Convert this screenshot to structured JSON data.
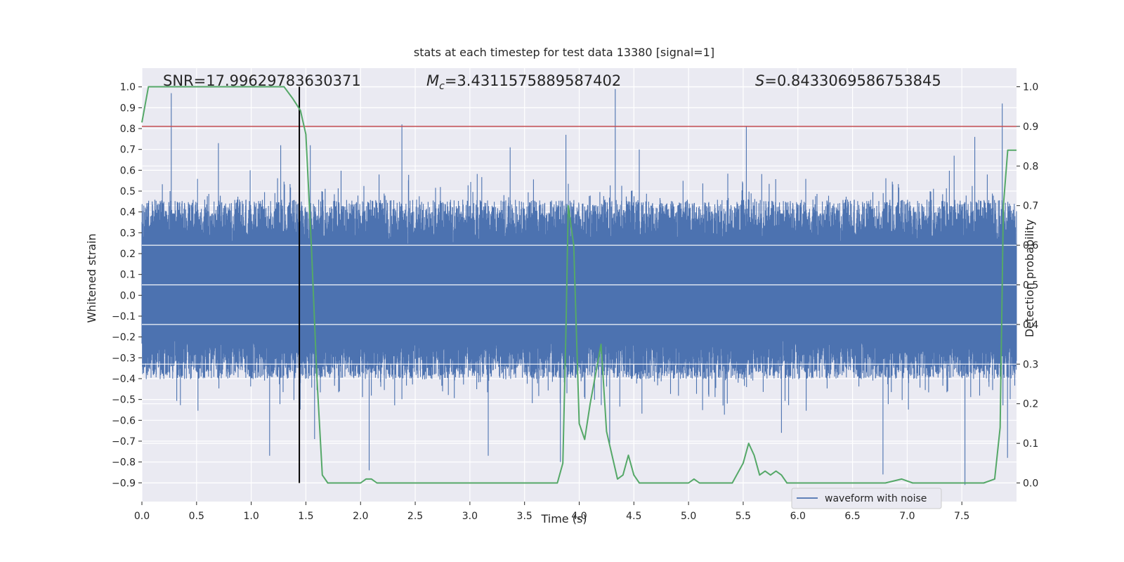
{
  "chart_data": {
    "type": "line",
    "title": "stats at each timestep for test data 13380 [signal=1]",
    "xlabel": "Time (s)",
    "ylabel_left": "Whitened strain",
    "ylabel_right": "Detection probability",
    "xlim": [
      0.0,
      8.0
    ],
    "ylim_left": [
      -0.99,
      1.09
    ],
    "ylim_right": [
      -0.047,
      1.047
    ],
    "x_ticks": [
      "0.0",
      "0.5",
      "1.0",
      "1.5",
      "2.0",
      "2.5",
      "3.0",
      "3.5",
      "4.0",
      "4.5",
      "5.0",
      "5.5",
      "6.0",
      "6.5",
      "7.0",
      "7.5"
    ],
    "y_ticks_left": [
      "1.0",
      "0.9",
      "0.8",
      "0.7",
      "0.6",
      "0.5",
      "0.4",
      "0.3",
      "0.2",
      "0.1",
      "0.0",
      "−0.1",
      "−0.2",
      "−0.3",
      "−0.4",
      "−0.5",
      "−0.6",
      "−0.7",
      "−0.8",
      "−0.9"
    ],
    "y_ticks_right": [
      "1.0",
      "0.9",
      "0.8",
      "0.7",
      "0.6",
      "0.5",
      "0.4",
      "0.3",
      "0.2",
      "0.1",
      "0.0"
    ],
    "grid": true,
    "legend": {
      "position": "bottom-right",
      "entries": [
        "waveform with noise"
      ]
    },
    "annotations": {
      "snr": "SNR=17.99629783630371",
      "mc_symbol": "M",
      "mc_sub": "c",
      "mc_value": "=3.4311575889587402",
      "s_symbol": "S",
      "s_value": "=0.8433069586753845"
    },
    "threshold_line": {
      "axis": "right",
      "value": 0.9,
      "color": "#c44e52"
    },
    "vertical_marker": {
      "x": 1.44,
      "y_range_right": [
        0.0,
        1.0
      ],
      "color": "#000000"
    },
    "series": [
      {
        "name": "waveform with noise",
        "axis": "left",
        "color": "#4c72b0",
        "description_values": {
          "dense_envelope_upper_typical": 0.4,
          "dense_envelope_lower_typical": -0.35,
          "spikes": [
            [
              0.27,
              0.97
            ],
            [
              0.7,
              0.73
            ],
            [
              0.99,
              0.6
            ],
            [
              1.27,
              0.72
            ],
            [
              1.54,
              0.72
            ],
            [
              2.38,
              0.82
            ],
            [
              3.37,
              0.71
            ],
            [
              3.88,
              0.77
            ],
            [
              4.33,
              0.99
            ],
            [
              4.55,
              0.7
            ],
            [
              5.53,
              0.81
            ],
            [
              7.43,
              0.67
            ],
            [
              7.62,
              0.76
            ],
            [
              7.87,
              0.92
            ],
            [
              1.17,
              -0.77
            ],
            [
              1.58,
              -0.69
            ],
            [
              2.08,
              -0.84
            ],
            [
              3.17,
              -0.77
            ],
            [
              3.83,
              -0.8
            ],
            [
              4.28,
              -0.71
            ],
            [
              5.85,
              -0.66
            ],
            [
              6.78,
              -0.86
            ],
            [
              7.53,
              -0.91
            ],
            [
              7.92,
              -0.78
            ]
          ]
        }
      },
      {
        "name": "",
        "axis": "right",
        "color": "#55a868",
        "x": [
          0.0,
          0.06,
          0.15,
          0.3,
          0.5,
          0.8,
          1.1,
          1.3,
          1.38,
          1.45,
          1.5,
          1.55,
          1.6,
          1.65,
          1.7,
          1.8,
          2.0,
          2.05,
          2.1,
          2.15,
          2.2,
          2.5,
          3.0,
          3.3,
          3.5,
          3.6,
          3.7,
          3.8,
          3.85,
          3.88,
          3.9,
          3.95,
          4.0,
          4.05,
          4.1,
          4.2,
          4.25,
          4.3,
          4.35,
          4.4,
          4.45,
          4.5,
          4.55,
          4.6,
          4.7,
          4.9,
          5.0,
          5.05,
          5.1,
          5.2,
          5.3,
          5.4,
          5.5,
          5.55,
          5.6,
          5.65,
          5.7,
          5.75,
          5.8,
          5.85,
          5.9,
          5.95,
          6.0,
          6.2,
          6.5,
          6.8,
          6.95,
          7.05,
          7.15,
          7.3,
          7.5,
          7.7,
          7.8,
          7.85,
          7.88,
          7.92,
          8.0
        ],
        "y": [
          0.91,
          1.0,
          1.0,
          1.0,
          1.0,
          1.0,
          1.0,
          1.0,
          0.97,
          0.94,
          0.88,
          0.6,
          0.27,
          0.02,
          0.0,
          0.0,
          0.0,
          0.01,
          0.01,
          0.0,
          0.0,
          0.0,
          0.0,
          0.0,
          0.0,
          0.0,
          0.0,
          0.0,
          0.05,
          0.4,
          0.7,
          0.6,
          0.15,
          0.11,
          0.2,
          0.35,
          0.13,
          0.07,
          0.01,
          0.02,
          0.07,
          0.02,
          0.0,
          0.0,
          0.0,
          0.0,
          0.0,
          0.01,
          0.0,
          0.0,
          0.0,
          0.0,
          0.05,
          0.1,
          0.07,
          0.02,
          0.03,
          0.02,
          0.03,
          0.02,
          0.0,
          0.0,
          0.0,
          0.0,
          0.0,
          0.0,
          0.01,
          0.0,
          0.0,
          0.0,
          0.0,
          0.0,
          0.01,
          0.14,
          0.7,
          0.84,
          0.84
        ]
      }
    ]
  },
  "colors": {
    "plot_background": "#eaeaf2",
    "grid": "#ffffff",
    "waveform": "#4c72b0",
    "probability": "#55a868",
    "threshold": "#c44e52",
    "marker": "#000000"
  }
}
